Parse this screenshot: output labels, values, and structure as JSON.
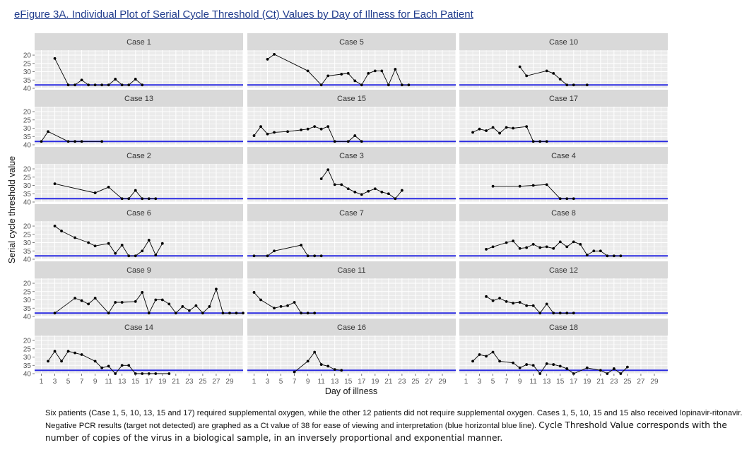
{
  "figure_title": "eFigure 3A. Individual Plot of Serial Cycle Threshold (Ct) Values by Day of Illness for Each Patient",
  "caption": {
    "part1": "Six patients (Case 1, 5, 10, 13, 15 and 17) required supplemental oxygen, while the other 12 patients did not require supplemental oxygen. Cases 1, 5, 10, 15 and 15 also received lopinavir-ritonavir. Negative PCR results (target not detected) are graphed as a Ct value of 38 for ease of viewing and interpretation (blue horizontal blue line).",
    "part2": "Cycle Threshold Value corresponds with the number of copies of the virus in a biological sample, in an inversely proportional and exponential manner."
  },
  "colors": {
    "panel_bg": "#ebebeb",
    "strip_bg": "#d9d9d9",
    "grid": "#ffffff",
    "line": "#000000",
    "reference_line": "#2a2ae0"
  },
  "chart_data": {
    "type": "line",
    "facets": "3 columns x 6 rows, shared axes",
    "xlabel": "Day of illness",
    "ylabel": "Serial cycle threshold value",
    "xlim": [
      0,
      31
    ],
    "ylim": [
      40,
      17
    ],
    "x_ticks": [
      1,
      3,
      5,
      7,
      9,
      11,
      13,
      15,
      17,
      19,
      21,
      23,
      25,
      27,
      29
    ],
    "y_ticks": [
      20,
      25,
      30,
      35,
      40
    ],
    "y_reversed": true,
    "reference_line_y": 38,
    "grid": true,
    "panels": [
      {
        "label": "Case 1",
        "x": [
          3,
          5,
          6,
          7,
          8,
          9,
          10,
          11,
          12,
          13,
          14,
          15,
          16
        ],
        "y": [
          22,
          38,
          38,
          35,
          38,
          38,
          38,
          38,
          34.5,
          38,
          38,
          34.5,
          38
        ]
      },
      {
        "label": "Case 5",
        "x": [
          3,
          4,
          9,
          11,
          12,
          14,
          15,
          16,
          17,
          18,
          19,
          20,
          21,
          22,
          23,
          24
        ],
        "y": [
          22.5,
          19.5,
          29.5,
          38,
          32.5,
          31.5,
          31,
          35.5,
          38,
          31,
          29.5,
          29.5,
          38,
          28.5,
          38,
          38
        ]
      },
      {
        "label": "Case 10",
        "x": [
          9,
          10,
          13,
          14,
          15,
          16,
          17,
          19
        ],
        "y": [
          27,
          32.5,
          29.5,
          31,
          34.5,
          38,
          38,
          38
        ]
      },
      {
        "label": "Case 13",
        "x": [
          1,
          2,
          5,
          6,
          7,
          10
        ],
        "y": [
          38,
          32,
          38,
          38,
          38,
          38
        ]
      },
      {
        "label": "Case 15",
        "x": [
          1,
          2,
          3,
          4,
          6,
          8,
          9,
          10,
          11,
          12,
          13,
          15,
          16,
          17
        ],
        "y": [
          34.5,
          29,
          33.5,
          32.5,
          32,
          31,
          30.5,
          29,
          30.5,
          29,
          38,
          38,
          34.5,
          38
        ]
      },
      {
        "label": "Case 17",
        "x": [
          2,
          3,
          4,
          5,
          6,
          7,
          8,
          10,
          11,
          12,
          13
        ],
        "y": [
          32.5,
          30.5,
          31.5,
          29.5,
          33,
          29.5,
          30,
          29,
          38,
          38,
          38
        ]
      },
      {
        "label": "Case 2",
        "x": [
          3,
          9,
          11,
          13,
          14,
          15,
          16,
          17,
          18
        ],
        "y": [
          29,
          34.5,
          31,
          38,
          38,
          33,
          38,
          38,
          38
        ]
      },
      {
        "label": "Case 3",
        "x": [
          11,
          12,
          13,
          14,
          15,
          16,
          17,
          18,
          19,
          20,
          21,
          22,
          23
        ],
        "y": [
          26,
          20.5,
          29.5,
          29.5,
          32,
          34,
          35.5,
          33.5,
          32,
          34,
          35,
          38,
          33
        ]
      },
      {
        "label": "Case 4",
        "x": [
          5,
          9,
          11,
          13,
          15,
          16,
          17
        ],
        "y": [
          30.5,
          30.5,
          30,
          29.5,
          38,
          38,
          38
        ]
      },
      {
        "label": "Case 6",
        "x": [
          3,
          4,
          6,
          8,
          9,
          11,
          12,
          13,
          14,
          15,
          16,
          17,
          18,
          19
        ],
        "y": [
          20,
          23,
          27,
          30,
          32,
          30.5,
          36.5,
          31.5,
          38,
          38,
          35,
          28.5,
          37.5,
          30.5
        ]
      },
      {
        "label": "Case 7",
        "x": [
          1,
          3,
          4,
          8,
          9,
          10,
          11
        ],
        "y": [
          38,
          38,
          35,
          31.5,
          38,
          38,
          38
        ]
      },
      {
        "label": "Case 8",
        "x": [
          4,
          5,
          7,
          8,
          9,
          10,
          11,
          12,
          13,
          14,
          15,
          16,
          17,
          18,
          19,
          20,
          21,
          22,
          23,
          24
        ],
        "y": [
          34,
          32.5,
          30,
          29,
          33.5,
          33,
          31,
          33,
          32.5,
          33.5,
          29.5,
          32.5,
          29.5,
          31,
          37.5,
          35,
          35,
          38,
          38,
          38
        ]
      },
      {
        "label": "Case 9",
        "x": [
          3,
          6,
          7,
          8,
          9,
          11,
          12,
          13,
          15,
          16,
          17,
          18,
          19,
          20,
          21,
          22,
          23,
          24,
          25,
          26,
          27,
          28,
          29,
          30,
          31
        ],
        "y": [
          38,
          29,
          30.5,
          32.5,
          29,
          38,
          31.5,
          31.5,
          31,
          25.5,
          38,
          30,
          30,
          32.5,
          38,
          34,
          36.5,
          33.5,
          38,
          34,
          23.5,
          38,
          38,
          38,
          38
        ]
      },
      {
        "label": "Case 11",
        "x": [
          1,
          2,
          4,
          5,
          6,
          7,
          8,
          9,
          10
        ],
        "y": [
          25.5,
          30,
          35,
          34,
          33.5,
          31.5,
          38,
          38,
          38
        ]
      },
      {
        "label": "Case 12",
        "x": [
          4,
          5,
          6,
          7,
          8,
          9,
          10,
          11,
          12,
          13,
          14,
          15,
          16,
          17
        ],
        "y": [
          28,
          30.5,
          29,
          31,
          32,
          31.5,
          33.5,
          33.5,
          38,
          32.5,
          38,
          38,
          38,
          38
        ]
      },
      {
        "label": "Case 14",
        "x": [
          2,
          3,
          4,
          5,
          6,
          7,
          9,
          10,
          11,
          12,
          13,
          14,
          15,
          16,
          17,
          18,
          20
        ],
        "y": [
          32.5,
          26.5,
          32.5,
          26.5,
          27.5,
          28.5,
          32.5,
          36.5,
          35.5,
          40,
          35,
          35,
          40,
          40,
          40,
          40,
          40
        ]
      },
      {
        "label": "Case 16",
        "x": [
          7,
          9,
          10,
          11,
          12,
          13,
          14
        ],
        "y": [
          39,
          32.5,
          27,
          34.5,
          35.5,
          37.5,
          38
        ]
      },
      {
        "label": "Case 18",
        "x": [
          2,
          3,
          4,
          5,
          6,
          8,
          9,
          10,
          11,
          12,
          13,
          14,
          15,
          16,
          17,
          19,
          21,
          22,
          23,
          24,
          25
        ],
        "y": [
          32.5,
          28.5,
          29.5,
          27,
          32.5,
          33.5,
          36.5,
          34.5,
          35,
          40,
          34,
          34.5,
          35.5,
          37,
          40,
          36.5,
          38,
          40,
          37,
          40,
          36
        ]
      }
    ]
  }
}
